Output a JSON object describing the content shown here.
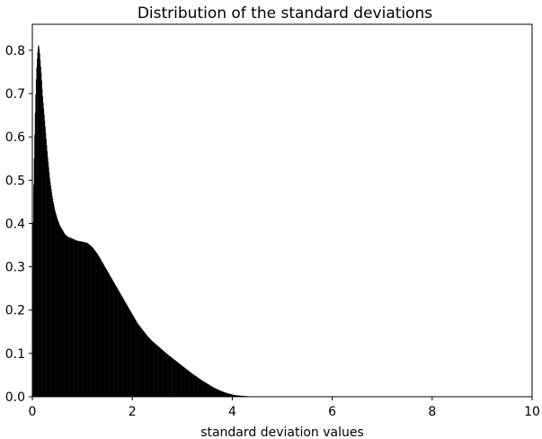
{
  "chart_data": {
    "type": "bar",
    "subtype": "histogram",
    "title": "Distribution of the standard deviations",
    "xlabel": "standard deviation values",
    "ylabel": "",
    "xlim": [
      0,
      10
    ],
    "ylim": [
      0,
      0.86
    ],
    "x_ticks": [
      "0",
      "2",
      "4",
      "6",
      "8",
      "10"
    ],
    "y_ticks": [
      "0.0",
      "0.1",
      "0.2",
      "0.3",
      "0.4",
      "0.5",
      "0.6",
      "0.7",
      "0.8"
    ],
    "grid": false,
    "bar_color": "#000000",
    "curve": {
      "x": [
        0.0,
        0.02,
        0.04,
        0.06,
        0.08,
        0.1,
        0.12,
        0.14,
        0.16,
        0.18,
        0.2,
        0.25,
        0.3,
        0.35,
        0.4,
        0.45,
        0.5,
        0.55,
        0.6,
        0.65,
        0.7,
        0.8,
        0.9,
        1.0,
        1.1,
        1.2,
        1.3,
        1.4,
        1.5,
        1.6,
        1.7,
        1.8,
        1.9,
        2.0,
        2.1,
        2.2,
        2.3,
        2.4,
        2.5,
        2.6,
        2.7,
        2.8,
        2.9,
        3.0,
        3.1,
        3.2,
        3.3,
        3.4,
        3.5,
        3.6,
        3.7,
        3.8,
        3.9,
        4.0,
        4.1,
        4.2,
        4.3,
        4.4,
        4.5,
        4.6,
        4.7,
        4.8,
        4.9,
        5.0
      ],
      "y": [
        0.23,
        0.46,
        0.58,
        0.68,
        0.75,
        0.79,
        0.815,
        0.8,
        0.77,
        0.74,
        0.7,
        0.63,
        0.56,
        0.5,
        0.46,
        0.43,
        0.41,
        0.395,
        0.385,
        0.375,
        0.37,
        0.365,
        0.36,
        0.358,
        0.355,
        0.345,
        0.33,
        0.31,
        0.29,
        0.27,
        0.25,
        0.23,
        0.21,
        0.19,
        0.17,
        0.155,
        0.14,
        0.128,
        0.118,
        0.108,
        0.098,
        0.089,
        0.08,
        0.071,
        0.062,
        0.053,
        0.045,
        0.037,
        0.03,
        0.023,
        0.017,
        0.012,
        0.008,
        0.005,
        0.003,
        0.002,
        0.0012,
        0.0008,
        0.0005,
        0.0003,
        0.0002,
        0.0001,
        5e-05,
        0.0
      ]
    }
  }
}
